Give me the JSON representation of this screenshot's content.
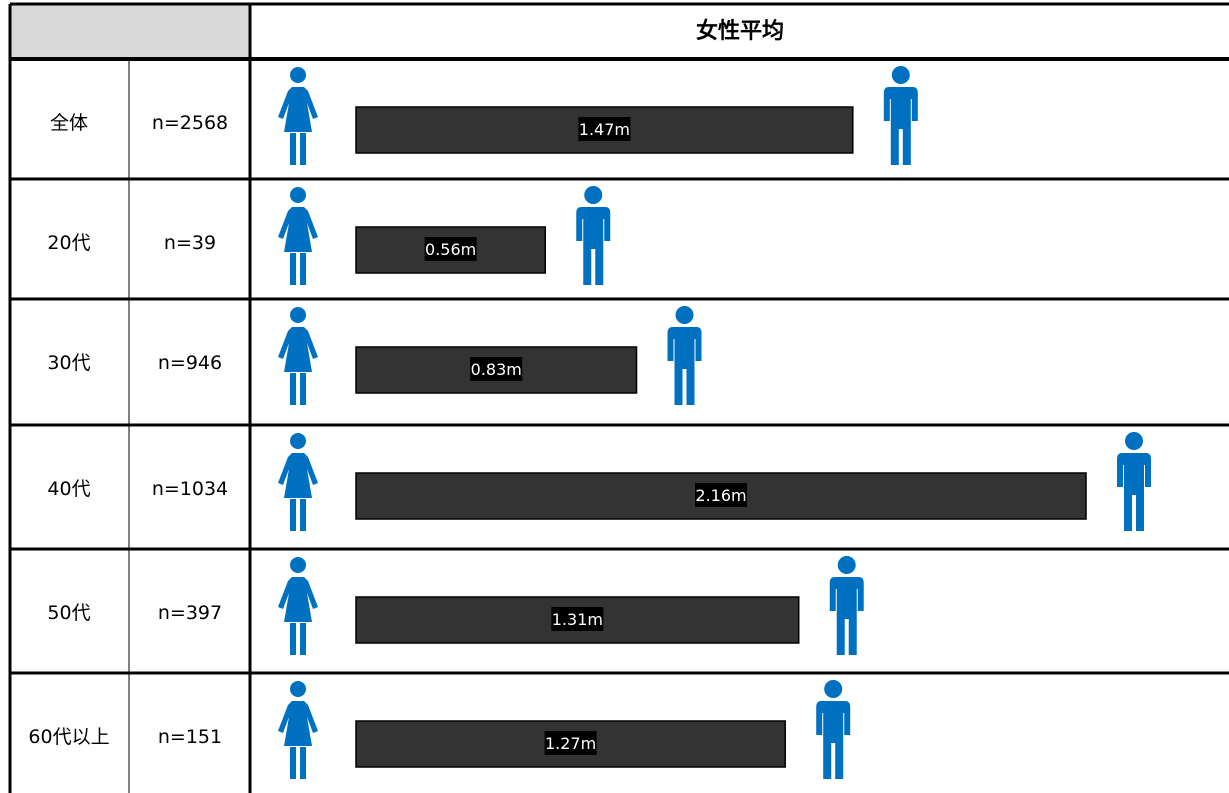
{
  "header": {
    "title": "女性平均"
  },
  "colors": {
    "header_bg": "#d9d9d9",
    "bar_fill": "#333333",
    "label_bg": "#000000",
    "label_text": "#ffffff",
    "icon": "#0070c0",
    "border": "#000000"
  },
  "icons": {
    "female": "female-figure-icon",
    "male": "male-figure-icon"
  },
  "chart_data": {
    "type": "bar",
    "orientation": "horizontal",
    "title": "女性平均",
    "categories": [
      "全体",
      "20代",
      "30代",
      "40代",
      "50代",
      "60代以上"
    ],
    "sample_sizes": [
      "n=2568",
      "n=39",
      "n=946",
      "n=1034",
      "n=397",
      "n=151"
    ],
    "values": [
      1.47,
      0.56,
      0.83,
      2.16,
      1.31,
      1.27
    ],
    "value_labels": [
      "1.47m",
      "0.56m",
      "0.83m",
      "2.16m",
      "1.31m",
      "1.27m"
    ],
    "unit": "m",
    "grid": false
  }
}
